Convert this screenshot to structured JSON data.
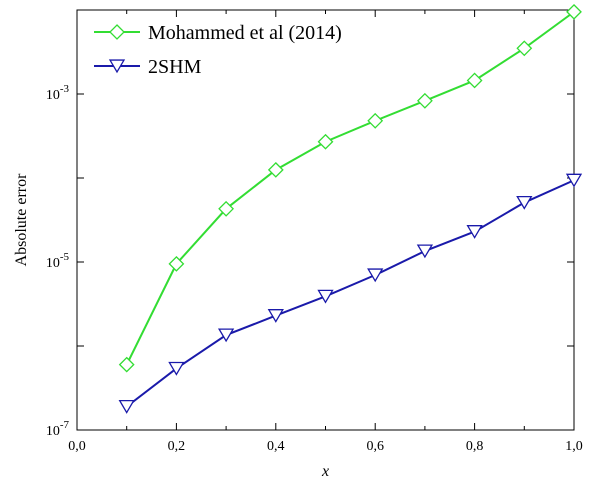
{
  "chart_data": {
    "type": "line",
    "xlabel": "x",
    "ylabel": "Absolute error",
    "xlim": [
      0.0,
      1.0
    ],
    "ylim": [
      1e-07,
      0.01
    ],
    "yscale": "log",
    "grid": false,
    "legend_position": "top-left",
    "x_ticks": [
      "0,0",
      "0,2",
      "0,4",
      "0,6",
      "0,8",
      "1,0"
    ],
    "y_ticks": [
      {
        "base": "10",
        "exp": "-7"
      },
      {
        "base": "10",
        "exp": "-5"
      },
      {
        "base": "10",
        "exp": "-3"
      }
    ],
    "x": [
      0.1,
      0.2,
      0.3,
      0.4,
      0.5,
      0.6,
      0.7,
      0.8,
      0.9,
      1.0
    ],
    "series": [
      {
        "name": "Mohammed et al (2014)",
        "color": "#33dd33",
        "marker": "diamond",
        "values": [
          6e-07,
          9.5e-06,
          4.3e-05,
          0.000125,
          0.00027,
          0.00048,
          0.00083,
          0.00145,
          0.0035,
          0.0095
        ]
      },
      {
        "name": "2SHM",
        "color": "#1a1aaa",
        "marker": "triangle-down",
        "values": [
          1.9e-07,
          5.4e-07,
          1.35e-06,
          2.3e-06,
          3.9e-06,
          7e-06,
          1.35e-05,
          2.3e-05,
          5.1e-05,
          9.4e-05
        ]
      }
    ]
  }
}
